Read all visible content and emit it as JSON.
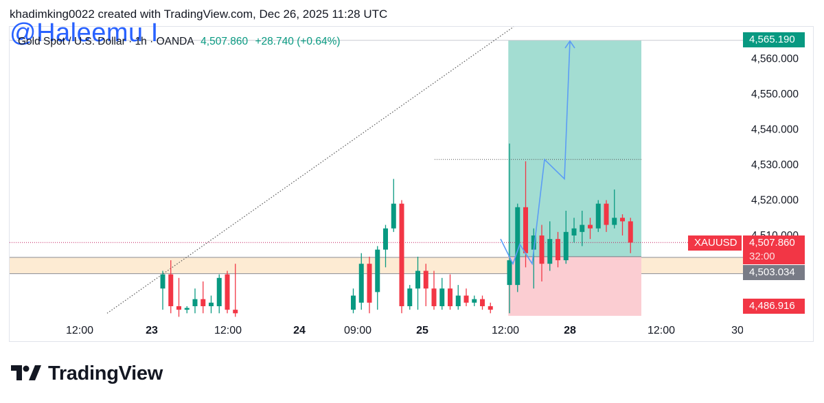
{
  "header": {
    "caption": "khadimking0022 created with TradingView.com, Dec 26, 2025 11:28 UTC"
  },
  "watermark": {
    "text": "@Haleemu I"
  },
  "symbol": {
    "name": "Gold Spot / U.S. Dollar · 1h · OANDA",
    "price": "4,507.860",
    "change": "+28.740 (+0.64%)"
  },
  "badges": {
    "target": "4,565.190",
    "ticker": "XAUUSD",
    "last_price": "4,507.860",
    "countdown": "32:00",
    "entry": "4,503.034",
    "stop": "4,486.916"
  },
  "colors": {
    "up": "#089981",
    "down": "#f23645",
    "profit_zone": "#a3ddd2",
    "loss_zone": "#fbcdd2",
    "support_zone": "#fdebd3",
    "projection": "#5b9cf5",
    "entry_badge": "#787b86"
  },
  "logo": {
    "text": "TradingView",
    "icon": "tradingview-logo-icon"
  },
  "chart_data": {
    "type": "candlestick",
    "y_axis_ticks": [
      "4,510.000",
      "4,520.000",
      "4,530.000",
      "4,540.000",
      "4,550.000",
      "4,560.000"
    ],
    "x_axis_ticks": [
      {
        "label": "12:00",
        "bold": false
      },
      {
        "label": "23",
        "bold": true
      },
      {
        "label": "12:00",
        "bold": false
      },
      {
        "label": "24",
        "bold": true
      },
      {
        "label": "09:00",
        "bold": false
      },
      {
        "label": "25",
        "bold": true
      },
      {
        "label": "12:00",
        "bold": false
      },
      {
        "label": "28",
        "bold": true
      },
      {
        "label": "12:00",
        "bold": false
      },
      {
        "label": "30",
        "bold": false
      }
    ],
    "candles": [
      {
        "o": 4495,
        "h": 4500,
        "l": 4489,
        "c": 4499
      },
      {
        "o": 4499,
        "h": 4503,
        "l": 4488,
        "c": 4490
      },
      {
        "o": 4490,
        "h": 4498,
        "l": 4487,
        "c": 4489
      },
      {
        "o": 4489,
        "h": 4490,
        "l": 4488,
        "c": 4489.5
      },
      {
        "o": 4490,
        "h": 4495,
        "l": 4488,
        "c": 4492
      },
      {
        "o": 4492,
        "h": 4497,
        "l": 4488,
        "c": 4490
      },
      {
        "o": 4490,
        "h": 4493,
        "l": 4488,
        "c": 4491
      },
      {
        "o": 4490,
        "h": 4499,
        "l": 4488,
        "c": 4498
      },
      {
        "o": 4499,
        "h": 4500,
        "l": 4488,
        "c": 4489
      },
      {
        "o": 4489,
        "h": 4502,
        "l": 4487,
        "c": 4488
      },
      {
        "o": 4489,
        "h": 4495,
        "l": 4488,
        "c": 4493
      },
      {
        "o": 4491,
        "h": 4505,
        "l": 4489,
        "c": 4502
      },
      {
        "o": 4502,
        "h": 4504,
        "l": 4488,
        "c": 4491
      },
      {
        "o": 4494,
        "h": 4507,
        "l": 4489,
        "c": 4506
      },
      {
        "o": 4506,
        "h": 4513,
        "l": 4501,
        "c": 4512
      },
      {
        "o": 4512,
        "h": 4526,
        "l": 4511,
        "c": 4519
      },
      {
        "o": 4519,
        "h": 4520,
        "l": 4488,
        "c": 4490
      },
      {
        "o": 4490,
        "h": 4496,
        "l": 4489,
        "c": 4495
      },
      {
        "o": 4495,
        "h": 4504,
        "l": 4489,
        "c": 4500
      },
      {
        "o": 4500,
        "h": 4502,
        "l": 4490,
        "c": 4495
      },
      {
        "o": 4495,
        "h": 4500,
        "l": 4489,
        "c": 4490
      },
      {
        "o": 4490,
        "h": 4498,
        "l": 4489,
        "c": 4495
      },
      {
        "o": 4495,
        "h": 4499,
        "l": 4489,
        "c": 4490
      },
      {
        "o": 4490,
        "h": 4496,
        "l": 4489,
        "c": 4493
      },
      {
        "o": 4493,
        "h": 4495,
        "l": 4490,
        "c": 4491
      },
      {
        "o": 4491,
        "h": 4493,
        "l": 4490,
        "c": 4492
      },
      {
        "o": 4492,
        "h": 4493,
        "l": 4489,
        "c": 4490
      },
      {
        "o": 4490,
        "h": 4491,
        "l": 4488,
        "c": 4489
      },
      {
        "o": 4496,
        "h": 4536,
        "l": 4488,
        "c": 4503
      },
      {
        "o": 4496,
        "h": 4519,
        "l": 4494,
        "c": 4518
      },
      {
        "o": 4518,
        "h": 4531,
        "l": 4501,
        "c": 4505
      },
      {
        "o": 4506,
        "h": 4512,
        "l": 4495,
        "c": 4510
      },
      {
        "o": 4510,
        "h": 4513,
        "l": 4497,
        "c": 4502
      },
      {
        "o": 4502,
        "h": 4514,
        "l": 4500,
        "c": 4509
      },
      {
        "o": 4509,
        "h": 4511,
        "l": 4501,
        "c": 4503
      },
      {
        "o": 4503,
        "h": 4517,
        "l": 4502,
        "c": 4511
      },
      {
        "o": 4510,
        "h": 4515,
        "l": 4508,
        "c": 4512
      },
      {
        "o": 4511,
        "h": 4517,
        "l": 4507,
        "c": 4513
      },
      {
        "o": 4513,
        "h": 4515,
        "l": 4509,
        "c": 4512
      },
      {
        "o": 4512,
        "h": 4520,
        "l": 4511,
        "c": 4519
      },
      {
        "o": 4519,
        "h": 4520,
        "l": 4511,
        "c": 4513
      },
      {
        "o": 4513,
        "h": 4523,
        "l": 4512,
        "c": 4515
      },
      {
        "o": 4515,
        "h": 4516,
        "l": 4510,
        "c": 4514
      },
      {
        "o": 4514,
        "h": 4515,
        "l": 4505,
        "c": 4508
      }
    ],
    "trendline_start": {
      "candle": -4,
      "price": 4488
    },
    "trendline_end_upper": {
      "price": 4568
    },
    "support_zone": [
      4499.2,
      4503.8
    ],
    "position": {
      "entry": 4504.0,
      "target": 4565.19,
      "stop": 4486.9
    },
    "resistance_level": 4531.5,
    "projection_path": [
      4509,
      4502,
      4507.5,
      4502,
      4531.5,
      4526,
      4565
    ]
  }
}
